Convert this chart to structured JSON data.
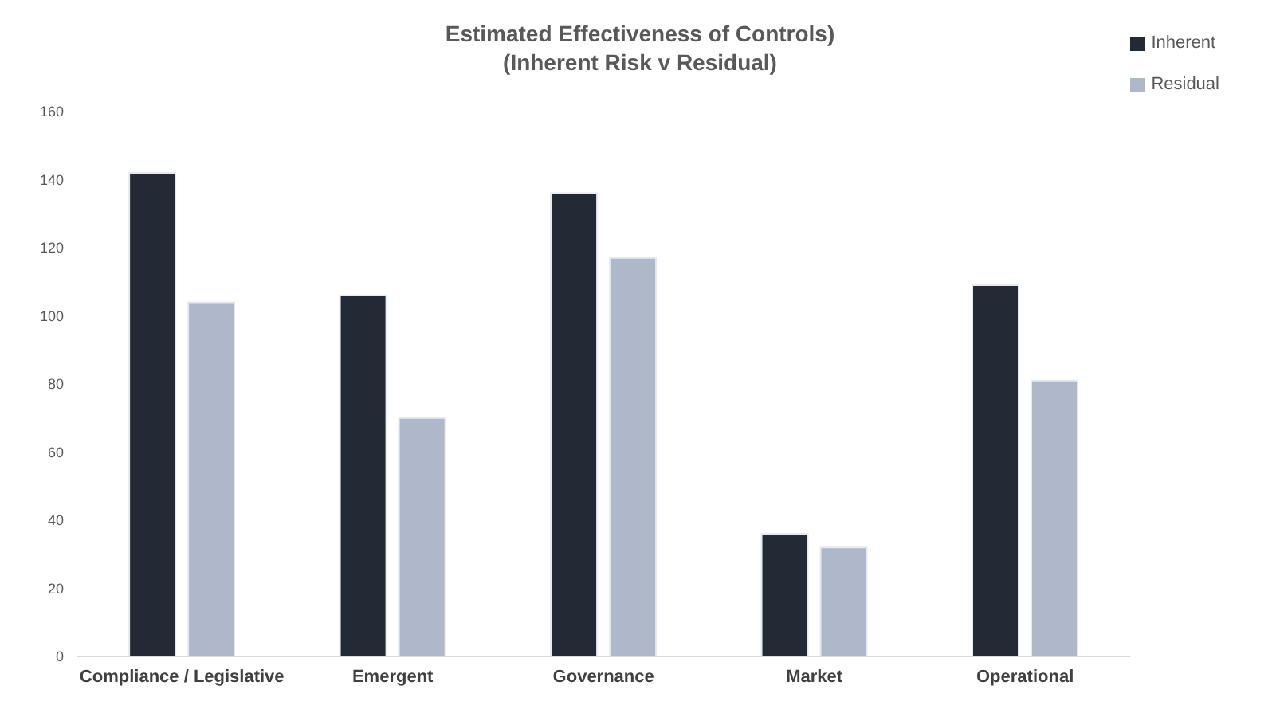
{
  "chart_data": {
    "type": "bar",
    "title": "Estimated Effectiveness of Controls)\n(Inherent Risk v Residual)",
    "categories": [
      "Compliance / Legislative",
      "Emergent",
      "Governance",
      "Market",
      "Operational"
    ],
    "series": [
      {
        "name": "Inherent",
        "color": "#232a35",
        "values": [
          142,
          106,
          136,
          36,
          109
        ]
      },
      {
        "name": "Residual",
        "color": "#aeb8ca",
        "values": [
          104,
          70,
          117,
          32,
          81
        ]
      }
    ],
    "ylim": [
      0,
      160
    ],
    "yticks": [
      0,
      20,
      40,
      60,
      80,
      100,
      120,
      140,
      160
    ],
    "grid": false,
    "legend": "top right"
  }
}
